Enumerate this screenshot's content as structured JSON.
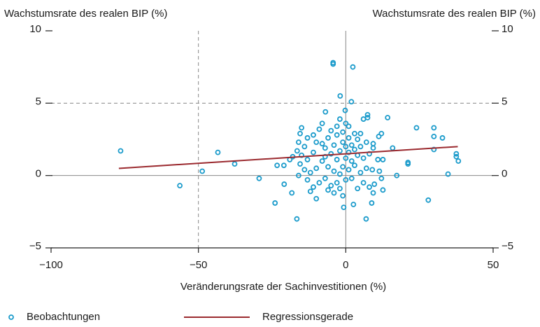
{
  "chart_data": {
    "type": "scatter",
    "ylabel": "Wachstumsrate des realen BIP (%)",
    "y2label": "Wachstumsrate des realen BIP (%)",
    "xlabel": "Veränderungsrate der Sachinvestitionen (%)",
    "xlim": [
      -100,
      50
    ],
    "xticks": [
      {
        "value": -100,
        "label": "−100"
      },
      {
        "value": -50,
        "label": "−50"
      },
      0,
      50
    ],
    "ylim": [
      -5,
      10
    ],
    "yticks": [
      {
        "value": -5,
        "label": "−5"
      },
      0,
      5,
      10
    ],
    "y2lim": [
      -5,
      10
    ],
    "y2ticks": [
      {
        "value": -5,
        "label": "−5"
      },
      0,
      5,
      10
    ],
    "grid": true,
    "series": [
      {
        "name": "Beobachtungen",
        "color": "#1b9bcb",
        "type": "scatter",
        "x": [
          -76.4,
          -56.3,
          -48.7,
          -43.4,
          -37.7,
          -29.4,
          -24,
          -23.3,
          -21,
          -20.9,
          -19,
          -18.3,
          -16.6,
          -4.3,
          -4.3,
          2.4,
          -1.9,
          1.9,
          -0.7,
          2.6,
          6.9,
          8.8,
          9.3,
          17.3,
          21.1,
          21.1,
          24,
          28,
          29.9,
          29.9,
          32.8,
          29.9,
          34.7,
          37.5,
          37.5,
          38.2,
          14.2,
          7.4,
          7.4,
          12.1,
          11.2,
          15.9,
          9.3,
          9.3,
          12.6,
          10.9,
          12.6,
          9.7,
          12.1,
          11.4,
          -6.9,
          -0.2,
          -15,
          -15.5,
          -16,
          -14,
          -16.5,
          -15,
          -13,
          -15.5,
          -14,
          -16,
          -13,
          -12,
          -11,
          -10,
          -9,
          -8,
          -10,
          -9,
          -11,
          -7,
          -8,
          -7,
          -6,
          -5,
          -6,
          -5,
          -4,
          -4,
          -5,
          -4,
          -3,
          -3,
          -2,
          -3,
          -2,
          -3,
          -2,
          -1,
          -2,
          -1,
          -1,
          0,
          0,
          0,
          0,
          1,
          1,
          1,
          1,
          2,
          2,
          2,
          3,
          3,
          3,
          4,
          4,
          5,
          5,
          5,
          6,
          6,
          7,
          7,
          8,
          8,
          4,
          -12,
          -10,
          -6,
          -13,
          -7,
          -1,
          9,
          -18,
          -11,
          -8,
          6
        ],
        "y": [
          1.7,
          -0.7,
          0.3,
          1.6,
          0.8,
          -0.2,
          -1.9,
          0.7,
          0.7,
          -0.6,
          1.1,
          -1.2,
          -3,
          7.8,
          7.7,
          7.5,
          5.5,
          5.1,
          -2.2,
          -2,
          -3,
          -1.9,
          -1.2,
          0,
          0.8,
          0.9,
          3.3,
          -1.7,
          3.3,
          2.7,
          2.6,
          1.8,
          0.1,
          1.5,
          1.3,
          1,
          4,
          4.2,
          4,
          2.9,
          2.7,
          1.9,
          2.2,
          1.9,
          1.1,
          1.1,
          -1,
          -0.6,
          -0.2,
          0.3,
          4.4,
          4.5,
          3.3,
          2.9,
          2.3,
          2,
          1.7,
          1.4,
          1.1,
          0.8,
          0.4,
          0,
          -0.3,
          0.2,
          1.6,
          2.3,
          3.2,
          3.6,
          0.5,
          -0.5,
          -0.8,
          -0.2,
          1,
          1.9,
          2.6,
          3.1,
          0.6,
          -0.7,
          -1.2,
          0.3,
          1.5,
          2.1,
          2.8,
          3.4,
          3.9,
          1.1,
          0.1,
          -0.5,
          -0.9,
          0.6,
          1.7,
          2.3,
          3,
          3.6,
          2,
          1.2,
          -0.3,
          0.4,
          1.6,
          2.6,
          3.4,
          2.1,
          1,
          -0.2,
          0.7,
          1.8,
          2.9,
          2.5,
          1.4,
          0.2,
          2,
          2.9,
          1.2,
          -0.5,
          0.5,
          2.3,
          -0.8,
          1.5,
          -0.9,
          -1.1,
          -1.6,
          -1,
          2.6,
          1.3,
          -1.4,
          0.4,
          1.3,
          2.8,
          2.2,
          3.9
        ]
      },
      {
        "name": "Regressionsgerade",
        "color": "#9b2a2f",
        "type": "line",
        "x": [
          -77,
          38
        ],
        "y": [
          0.49,
          2.0
        ]
      }
    ]
  }
}
